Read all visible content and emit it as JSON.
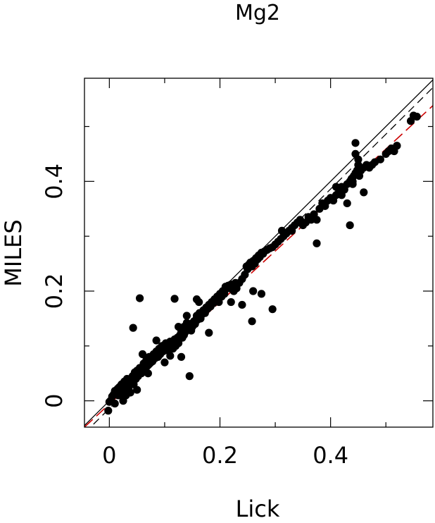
{
  "chart_data": {
    "type": "scatter",
    "title": "Mg2",
    "xlabel": "Lick",
    "ylabel": "MILES",
    "xlim": [
      -0.045,
      0.585
    ],
    "ylim": [
      -0.048,
      0.588
    ],
    "x_ticks": [
      0,
      0.2,
      0.4
    ],
    "x_tick_labels": [
      "0",
      "0.2",
      "0.4"
    ],
    "y_ticks": [
      0,
      0.2,
      0.4
    ],
    "y_tick_labels": [
      "0",
      "0.2",
      "0.4"
    ],
    "grid": false,
    "colors": {
      "points": "#000000",
      "one_to_one": "#000000",
      "offset_line": "#000000",
      "fit_line": "#cc0000"
    },
    "lines": [
      {
        "kind": "one-to-one",
        "style": "solid",
        "color": "#000000",
        "slope": 1.0,
        "intercept": 0.0
      },
      {
        "kind": "offset",
        "style": "dashed",
        "color": "#000000",
        "slope": 1.0,
        "intercept": -0.014
      },
      {
        "kind": "fit",
        "style": "dashed",
        "color": "#cc0000",
        "slope": 0.93,
        "intercept": -0.006
      }
    ],
    "points": [
      [
        -0.002,
        -0.018
      ],
      [
        0.0,
        -0.002
      ],
      [
        0.002,
        0.0
      ],
      [
        0.005,
        0.008
      ],
      [
        0.008,
        0.012
      ],
      [
        0.01,
        0.018
      ],
      [
        0.012,
        0.015
      ],
      [
        0.015,
        0.022
      ],
      [
        0.016,
        0.01
      ],
      [
        0.018,
        0.025
      ],
      [
        0.02,
        0.018
      ],
      [
        0.022,
        0.03
      ],
      [
        0.024,
        0.01
      ],
      [
        0.025,
        0.012
      ],
      [
        0.027,
        0.035
      ],
      [
        0.028,
        0.02
      ],
      [
        0.03,
        0.01
      ],
      [
        0.032,
        0.04
      ],
      [
        0.033,
        0.025
      ],
      [
        0.035,
        0.02
      ],
      [
        0.037,
        0.03
      ],
      [
        0.038,
        0.015
      ],
      [
        0.04,
        0.038
      ],
      [
        0.042,
        0.045
      ],
      [
        0.044,
        0.03
      ],
      [
        0.046,
        0.052
      ],
      [
        0.048,
        0.04
      ],
      [
        0.05,
        0.055
      ],
      [
        0.052,
        0.045
      ],
      [
        0.055,
        0.06
      ],
      [
        0.058,
        0.05
      ],
      [
        0.06,
        0.055
      ],
      [
        0.062,
        0.068
      ],
      [
        0.065,
        0.06
      ],
      [
        0.067,
        0.075
      ],
      [
        0.07,
        0.065
      ],
      [
        0.072,
        0.08
      ],
      [
        0.075,
        0.07
      ],
      [
        0.078,
        0.072
      ],
      [
        0.08,
        0.085
      ],
      [
        0.082,
        0.078
      ],
      [
        0.085,
        0.09
      ],
      [
        0.088,
        0.08
      ],
      [
        0.09,
        0.095
      ],
      [
        0.092,
        0.085
      ],
      [
        0.095,
        0.1
      ],
      [
        0.097,
        0.09
      ],
      [
        0.1,
        0.098
      ],
      [
        0.102,
        0.105
      ],
      [
        0.105,
        0.092
      ],
      [
        0.108,
        0.1
      ],
      [
        0.11,
        0.108
      ],
      [
        0.112,
        0.1
      ],
      [
        0.115,
        0.095
      ],
      [
        0.118,
        0.112
      ],
      [
        0.12,
        0.1
      ],
      [
        0.123,
        0.115
      ],
      [
        0.125,
        0.105
      ],
      [
        0.128,
        0.12
      ],
      [
        0.13,
        0.128
      ],
      [
        0.132,
        0.115
      ],
      [
        0.135,
        0.135
      ],
      [
        0.137,
        0.125
      ],
      [
        0.14,
        0.142
      ],
      [
        0.142,
        0.13
      ],
      [
        0.145,
        0.14
      ],
      [
        0.148,
        0.128
      ],
      [
        0.15,
        0.135
      ],
      [
        0.153,
        0.145
      ],
      [
        0.155,
        0.14
      ],
      [
        0.158,
        0.155
      ],
      [
        0.16,
        0.148
      ],
      [
        0.163,
        0.16
      ],
      [
        0.165,
        0.15
      ],
      [
        0.168,
        0.158
      ],
      [
        0.17,
        0.165
      ],
      [
        0.173,
        0.16
      ],
      [
        0.175,
        0.17
      ],
      [
        0.178,
        0.168
      ],
      [
        0.18,
        0.175
      ],
      [
        0.183,
        0.172
      ],
      [
        0.185,
        0.18
      ],
      [
        0.188,
        0.178
      ],
      [
        0.19,
        0.185
      ],
      [
        0.193,
        0.182
      ],
      [
        0.195,
        0.19
      ],
      [
        0.198,
        0.18
      ],
      [
        0.2,
        0.195
      ],
      [
        0.203,
        0.19
      ],
      [
        0.205,
        0.2
      ],
      [
        0.208,
        0.195
      ],
      [
        0.21,
        0.208
      ],
      [
        0.213,
        0.205
      ],
      [
        0.215,
        0.21
      ],
      [
        0.218,
        0.205
      ],
      [
        0.22,
        0.212
      ],
      [
        0.225,
        0.2
      ],
      [
        0.228,
        0.215
      ],
      [
        0.23,
        0.205
      ],
      [
        0.235,
        0.215
      ],
      [
        0.24,
        0.222
      ],
      [
        0.245,
        0.23
      ],
      [
        0.248,
        0.245
      ],
      [
        0.25,
        0.24
      ],
      [
        0.252,
        0.248
      ],
      [
        0.255,
        0.252
      ],
      [
        0.258,
        0.245
      ],
      [
        0.26,
        0.255
      ],
      [
        0.263,
        0.25
      ],
      [
        0.265,
        0.26
      ],
      [
        0.268,
        0.258
      ],
      [
        0.27,
        0.265
      ],
      [
        0.272,
        0.262
      ],
      [
        0.275,
        0.27
      ],
      [
        0.278,
        0.268
      ],
      [
        0.28,
        0.272
      ],
      [
        0.285,
        0.275
      ],
      [
        0.29,
        0.278
      ],
      [
        0.295,
        0.28
      ],
      [
        0.3,
        0.285
      ],
      [
        0.305,
        0.29
      ],
      [
        0.31,
        0.295
      ],
      [
        0.312,
        0.31
      ],
      [
        0.315,
        0.3
      ],
      [
        0.32,
        0.305
      ],
      [
        0.325,
        0.31
      ],
      [
        0.33,
        0.315
      ],
      [
        0.335,
        0.32
      ],
      [
        0.34,
        0.325
      ],
      [
        0.345,
        0.33
      ],
      [
        0.35,
        0.32
      ],
      [
        0.355,
        0.325
      ],
      [
        0.36,
        0.335
      ],
      [
        0.365,
        0.33
      ],
      [
        0.37,
        0.34
      ],
      [
        0.375,
        0.33
      ],
      [
        0.38,
        0.35
      ],
      [
        0.385,
        0.36
      ],
      [
        0.39,
        0.355
      ],
      [
        0.395,
        0.365
      ],
      [
        0.4,
        0.37
      ],
      [
        0.405,
        0.365
      ],
      [
        0.41,
        0.375
      ],
      [
        0.415,
        0.38
      ],
      [
        0.42,
        0.39
      ],
      [
        0.425,
        0.385
      ],
      [
        0.43,
        0.395
      ],
      [
        0.435,
        0.4
      ],
      [
        0.438,
        0.405
      ],
      [
        0.44,
        0.395
      ],
      [
        0.442,
        0.41
      ],
      [
        0.445,
        0.415
      ],
      [
        0.448,
        0.42
      ],
      [
        0.45,
        0.43
      ],
      [
        0.452,
        0.41
      ],
      [
        0.455,
        0.42
      ],
      [
        0.46,
        0.425
      ],
      [
        0.465,
        0.43
      ],
      [
        0.47,
        0.425
      ],
      [
        0.475,
        0.43
      ],
      [
        0.48,
        0.435
      ],
      [
        0.49,
        0.44
      ],
      [
        0.5,
        0.45
      ],
      [
        0.505,
        0.455
      ],
      [
        0.51,
        0.46
      ],
      [
        0.515,
        0.455
      ],
      [
        0.52,
        0.465
      ],
      [
        0.545,
        0.51
      ],
      [
        0.55,
        0.52
      ],
      [
        0.556,
        0.518
      ],
      [
        0.043,
        0.133
      ],
      [
        0.055,
        0.187
      ],
      [
        0.118,
        0.186
      ],
      [
        0.158,
        0.185
      ],
      [
        0.162,
        0.18
      ],
      [
        0.145,
        0.045
      ],
      [
        0.258,
        0.145
      ],
      [
        0.295,
        0.167
      ],
      [
        0.275,
        0.195
      ],
      [
        0.18,
        0.124
      ],
      [
        0.22,
        0.18
      ],
      [
        0.24,
        0.175
      ],
      [
        0.26,
        0.2
      ],
      [
        0.375,
        0.287
      ],
      [
        0.435,
        0.32
      ],
      [
        0.445,
        0.47
      ],
      [
        0.445,
        0.45
      ],
      [
        0.45,
        0.44
      ],
      [
        0.43,
        0.36
      ],
      [
        0.42,
        0.375
      ],
      [
        0.41,
        0.39
      ],
      [
        0.46,
        0.38
      ],
      [
        0.44,
        0.4
      ],
      [
        0.33,
        0.31
      ],
      [
        0.06,
        0.085
      ],
      [
        0.085,
        0.11
      ],
      [
        0.125,
        0.135
      ],
      [
        0.135,
        0.12
      ],
      [
        0.14,
        0.155
      ],
      [
        0.1,
        0.07
      ],
      [
        0.11,
        0.082
      ],
      [
        0.13,
        0.08
      ],
      [
        0.05,
        0.02
      ],
      [
        0.07,
        0.05
      ],
      [
        0.025,
        0.0
      ],
      [
        0.01,
        -0.005
      ]
    ]
  }
}
